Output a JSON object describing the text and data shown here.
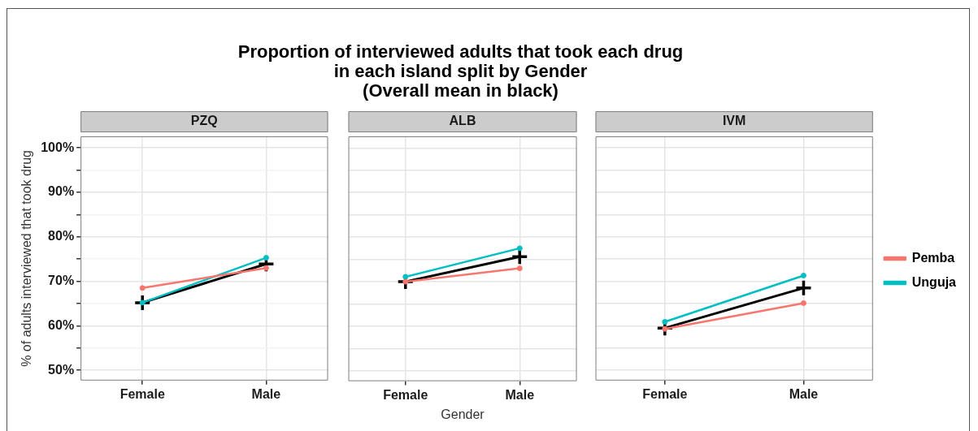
{
  "chart_data": [
    {
      "type": "line",
      "title": "Proportion of interviewed adults that took each drug\nin each island split by Gender\n(Overall mean in black)",
      "subtitle": "PZQ",
      "ylabel": "% of adults interviewed that took drug",
      "categories": [
        "Female",
        "Male"
      ],
      "ylim": [
        47.7,
        102.6
      ],
      "yticks": [
        {
          "value": 50,
          "label": "50%"
        },
        {
          "value": 55,
          "label": null
        },
        {
          "value": 60,
          "label": "60%"
        },
        {
          "value": 65,
          "label": null
        },
        {
          "value": 70,
          "label": "70%"
        },
        {
          "value": 75,
          "label": null
        },
        {
          "value": 80,
          "label": "80%"
        },
        {
          "value": 85,
          "label": null
        },
        {
          "value": 90,
          "label": "90%"
        },
        {
          "value": 95,
          "label": null
        },
        {
          "value": 100,
          "label": "100%"
        }
      ],
      "grid": true,
      "legend": false,
      "series": [
        {
          "color": "#f8766d",
          "marker": "circle",
          "values": [
            68.5,
            73
          ]
        },
        {
          "color": "#00bfc4",
          "marker": "circle",
          "values": [
            65.2,
            75.3
          ]
        },
        {
          "color": "#000000",
          "marker": "cross",
          "values": [
            65.2,
            73.9
          ]
        }
      ]
    },
    {
      "type": "line",
      "subtitle": "ALB",
      "xlabel": "Gender",
      "categories": [
        "Female",
        "Male"
      ],
      "ylim": [
        47.7,
        102.6
      ],
      "yticks": [
        50,
        55,
        60,
        65,
        70,
        75,
        80,
        85,
        90,
        95,
        100
      ],
      "tick_labels": "x",
      "grid": true,
      "legend": false,
      "series": [
        {
          "color": "#f8766d",
          "marker": "circle",
          "values": [
            70,
            73
          ]
        },
        {
          "color": "#00bfc4",
          "marker": "circle",
          "values": [
            71.1,
            77.5
          ]
        },
        {
          "color": "#000000",
          "marker": "cross",
          "values": [
            70,
            75.6
          ]
        }
      ]
    },
    {
      "type": "line",
      "subtitle": "IVM",
      "categories": [
        "Female",
        "Male"
      ],
      "ylim": [
        47.7,
        102.6
      ],
      "yticks": [
        50,
        55,
        60,
        65,
        70,
        75,
        80,
        85,
        90,
        95,
        100
      ],
      "tick_labels": "x",
      "grid": true,
      "legend": "right",
      "series": [
        {
          "name": "Pemba",
          "color": "#f8766d",
          "marker": "circle",
          "values": [
            59.3,
            65.1
          ]
        },
        {
          "name": "Unguja",
          "color": "#00bfc4",
          "marker": "circle",
          "values": [
            60.9,
            71.3
          ]
        },
        {
          "color": "#000000",
          "marker": "cross",
          "values": [
            59.5,
            68.5
          ]
        }
      ]
    }
  ]
}
